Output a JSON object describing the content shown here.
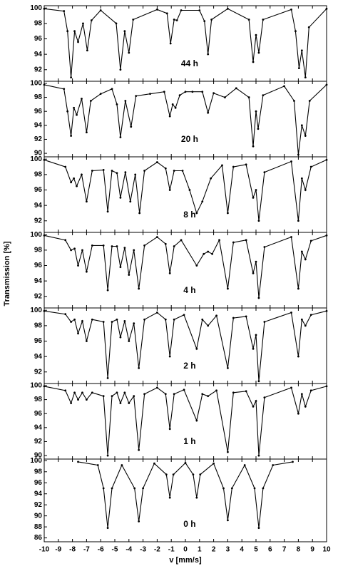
{
  "chart_data": [
    {
      "type": "line",
      "label": "44 h",
      "ylabel": "Transmission [%]",
      "xlim": [
        -10,
        10
      ],
      "ylim": [
        90.5,
        100.3
      ],
      "yticks": [
        92,
        94,
        96,
        98,
        100
      ],
      "x": [
        -10,
        -8.6,
        -8.35,
        -8.1,
        -7.85,
        -7.6,
        -7.25,
        -6.95,
        -6.65,
        -6,
        -4.9,
        -4.6,
        -4.3,
        -4.0,
        -3.7,
        -2,
        -1.3,
        -1.05,
        -0.8,
        -0.6,
        -0.3,
        1.0,
        1.35,
        1.6,
        1.85,
        3,
        4.5,
        4.8,
        5.0,
        5.2,
        5.5,
        7.5,
        7.8,
        8.05,
        8.25,
        8.5,
        8.75,
        10
      ],
      "values": [
        99.9,
        99.6,
        97,
        91,
        97,
        95.6,
        98,
        94.5,
        98.4,
        99.7,
        98,
        92,
        97,
        94.2,
        98.5,
        99.8,
        99.3,
        95.4,
        98.5,
        98.4,
        99.7,
        99.7,
        98.3,
        94,
        98.5,
        99.9,
        98.5,
        93,
        96.5,
        94.2,
        98.5,
        99.8,
        97,
        92.2,
        94.5,
        91,
        97.5,
        99.9
      ]
    },
    {
      "type": "line",
      "label": "20 h",
      "xlim": [
        -10,
        10
      ],
      "ylim": [
        89.5,
        100.3
      ],
      "yticks": [
        90,
        92,
        94,
        96,
        98,
        100
      ],
      "x": [
        -10,
        -8.6,
        -8.35,
        -8.1,
        -7.9,
        -7.7,
        -7.35,
        -7.0,
        -6.7,
        -6.0,
        -5.2,
        -4.85,
        -4.6,
        -4.25,
        -3.85,
        -3.5,
        -2.5,
        -1.5,
        -1.1,
        -0.9,
        -0.7,
        -0.4,
        0,
        0.5,
        1.2,
        1.6,
        2.0,
        2.8,
        3.6,
        4.5,
        4.8,
        5.0,
        5.15,
        5.5,
        7.0,
        7.7,
        8.0,
        8.25,
        8.5,
        8.8,
        10
      ],
      "values": [
        99.8,
        99.2,
        96,
        92.5,
        96.5,
        95.5,
        97.8,
        93,
        97.5,
        98.5,
        99.2,
        97,
        92.3,
        97.5,
        93.8,
        98.2,
        98.5,
        98.8,
        95.3,
        97,
        96.5,
        98.3,
        98.8,
        98.8,
        98.8,
        95.8,
        98.6,
        98,
        99.3,
        98,
        91,
        96,
        93.5,
        98.3,
        99.6,
        97.5,
        89.8,
        94,
        92.5,
        97.5,
        99.8
      ]
    },
    {
      "type": "line",
      "label": "8 h",
      "xlim": [
        -10,
        10
      ],
      "ylim": [
        90.5,
        100.3
      ],
      "yticks": [
        92,
        94,
        96,
        98,
        100
      ],
      "x": [
        -10,
        -8.5,
        -8.1,
        -7.9,
        -7.7,
        -7.35,
        -7.0,
        -6.6,
        -5.8,
        -5.5,
        -5.2,
        -4.85,
        -4.6,
        -4.25,
        -3.9,
        -3.55,
        -3.25,
        -2.9,
        -2.0,
        -1.4,
        -1.1,
        -0.8,
        -0.2,
        0.3,
        0.8,
        1.2,
        1.8,
        2.6,
        3.0,
        3.4,
        4.3,
        4.8,
        5.0,
        5.2,
        5.6,
        7.5,
        8.0,
        8.25,
        8.5,
        8.9,
        10
      ],
      "values": [
        99.9,
        99,
        97,
        97.5,
        96.5,
        98,
        94.5,
        98.5,
        98.6,
        93.2,
        98.5,
        98.2,
        95,
        98.3,
        94.5,
        98,
        93,
        98.5,
        99.6,
        98.8,
        96,
        98.5,
        98.5,
        96,
        93,
        94.5,
        97.5,
        99.2,
        93,
        99,
        99.3,
        95,
        96,
        92,
        98.3,
        99.7,
        92,
        97.5,
        96,
        99,
        99.9
      ]
    },
    {
      "type": "line",
      "label": "4 h",
      "xlim": [
        -10,
        10
      ],
      "ylim": [
        90.5,
        100.3
      ],
      "yticks": [
        92,
        94,
        96,
        98,
        100
      ],
      "x": [
        -10,
        -8.5,
        -8.1,
        -7.85,
        -7.6,
        -7.3,
        -7.0,
        -6.6,
        -5.8,
        -5.5,
        -5.2,
        -4.85,
        -4.6,
        -4.3,
        -4.0,
        -3.65,
        -3.3,
        -2.9,
        -2.0,
        -1.4,
        -1.1,
        -0.8,
        -0.3,
        0.8,
        1.3,
        1.6,
        1.9,
        2.4,
        3.0,
        3.4,
        4.3,
        4.8,
        5.0,
        5.2,
        5.6,
        7.5,
        8.0,
        8.25,
        8.5,
        8.9,
        10
      ],
      "values": [
        99.9,
        99.3,
        98,
        98.2,
        96,
        98,
        95.2,
        98.6,
        98.6,
        92.8,
        98.5,
        98.5,
        95.8,
        98.3,
        94.8,
        98,
        93,
        98.6,
        99.7,
        98.8,
        95,
        98.5,
        99.3,
        96,
        97.5,
        97.8,
        97.5,
        99.3,
        93,
        99,
        99.3,
        95,
        96.5,
        91.8,
        98.4,
        99.7,
        93,
        97.8,
        96.8,
        99.2,
        99.9
      ]
    },
    {
      "type": "line",
      "label": "2 h",
      "xlim": [
        -10,
        10
      ],
      "ylim": [
        90.5,
        100.3
      ],
      "yticks": [
        92,
        94,
        96,
        98,
        100
      ],
      "x": [
        -10,
        -8.5,
        -8.1,
        -7.85,
        -7.6,
        -7.3,
        -7.0,
        -6.6,
        -5.8,
        -5.5,
        -5.2,
        -4.85,
        -4.6,
        -4.3,
        -4.0,
        -3.65,
        -3.3,
        -2.9,
        -2.0,
        -1.4,
        -1.1,
        -0.8,
        -0.1,
        0.8,
        1.2,
        1.6,
        2.2,
        3.0,
        3.4,
        4.3,
        4.8,
        5.0,
        5.2,
        5.6,
        7.5,
        8.0,
        8.25,
        8.5,
        8.9,
        10
      ],
      "values": [
        99.9,
        99.5,
        98.5,
        98.8,
        97,
        98.6,
        96,
        98.8,
        98.5,
        91.2,
        98.5,
        98.8,
        96.5,
        98.6,
        96,
        98.3,
        92.5,
        98.8,
        99.7,
        98.8,
        94,
        98.8,
        99.4,
        95,
        98.8,
        98,
        99.3,
        92.5,
        99,
        99.2,
        95,
        96.8,
        90.8,
        98.5,
        99.7,
        94,
        98.8,
        98,
        99.4,
        99.9
      ]
    },
    {
      "type": "line",
      "label": "1 h",
      "xlim": [
        -10,
        10
      ],
      "ylim": [
        89.5,
        100.3
      ],
      "yticks": [
        90,
        92,
        94,
        96,
        98,
        100
      ],
      "x": [
        -10,
        -8.5,
        -8.1,
        -7.85,
        -7.6,
        -7.3,
        -7.0,
        -6.6,
        -5.8,
        -5.5,
        -5.2,
        -4.85,
        -4.6,
        -4.3,
        -4.0,
        -3.65,
        -3.3,
        -2.9,
        -2.0,
        -1.4,
        -1.1,
        -0.8,
        -0.1,
        0.8,
        1.2,
        1.6,
        2.2,
        3.0,
        3.4,
        4.3,
        4.8,
        5.0,
        5.2,
        5.6,
        7.5,
        8.0,
        8.25,
        8.5,
        8.9,
        10
      ],
      "values": [
        99.9,
        99.3,
        97.5,
        99,
        98,
        99,
        98,
        99,
        98.5,
        90,
        98.5,
        99,
        97.5,
        99,
        97.5,
        98.5,
        90.8,
        98.8,
        99.7,
        98.8,
        93.8,
        98.8,
        99.4,
        95,
        98.8,
        98.5,
        99.3,
        90.5,
        99,
        99.2,
        97,
        97.8,
        90,
        98.3,
        99.7,
        96,
        98.8,
        97,
        99.3,
        99.9
      ]
    },
    {
      "type": "line",
      "label": "0 h",
      "xlabel": "v [mm/s]",
      "xlim": [
        -10,
        10
      ],
      "xticks": [
        -10,
        -9,
        -8,
        -7,
        -6,
        -5,
        -4,
        -3,
        -2,
        -1,
        0,
        1,
        2,
        3,
        4,
        5,
        6,
        7,
        8,
        9,
        10
      ],
      "ylim": [
        85.3,
        100.3
      ],
      "yticks": [
        86,
        88,
        90,
        92,
        94,
        96,
        98,
        100
      ],
      "x": [
        -7.6,
        -6.2,
        -5.8,
        -5.5,
        -5.2,
        -4.5,
        -3.6,
        -3.3,
        -3.0,
        -2.2,
        -1.35,
        -1.1,
        -0.85,
        0,
        0.55,
        0.8,
        1.05,
        2.0,
        2.7,
        3.0,
        3.3,
        4.2,
        4.9,
        5.2,
        5.5,
        6.2,
        7.6
      ],
      "values": [
        99.8,
        99.2,
        95,
        87.8,
        95,
        99.2,
        95,
        89,
        95,
        99.5,
        97.5,
        93.3,
        97.5,
        99.6,
        97.5,
        93.3,
        97.5,
        99.5,
        95,
        89.2,
        95,
        99.2,
        95,
        87.8,
        95,
        99.2,
        99.8
      ]
    }
  ]
}
